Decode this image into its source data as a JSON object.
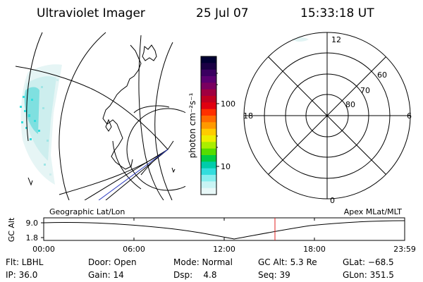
{
  "header": {
    "instrument": "Ultraviolet Imager",
    "date": "25 Jul 07",
    "time": "15:33:18 UT"
  },
  "colorbar": {
    "label": "photon cm⁻²s⁻¹",
    "ticks": [
      "100",
      "10"
    ],
    "colors": [
      "#000033",
      "#1a0044",
      "#3a0060",
      "#5a0070",
      "#7a0060",
      "#a00040",
      "#c00020",
      "#e00010",
      "#ff3000",
      "#ff6a00",
      "#ff9900",
      "#ffcc00",
      "#eeee00",
      "#aaee00",
      "#55dd00",
      "#00cc44",
      "#00ccaa",
      "#33dddd",
      "#88eeee",
      "#c8f4f4",
      "#e8f8f8"
    ]
  },
  "polar_plot": {
    "mlt_labels": [
      "12",
      "18",
      "6",
      "0"
    ],
    "lat_labels": [
      "60",
      "70",
      "80"
    ]
  },
  "map_caption": "Geographic Lat/Lon",
  "polar_caption": "Apex MLat/MLT",
  "altitude_plot": {
    "ylabel": "GC Alt",
    "yticks": [
      "9.0",
      "1.8"
    ],
    "xticks": [
      "00:00",
      "06:00",
      "12:00",
      "18:00",
      "23:59"
    ]
  },
  "status": {
    "flt": "Flt: LBHL",
    "ip": "IP: 36.0",
    "door": "Door: Open",
    "gain": "Gain: 14",
    "mode": "Mode: Normal",
    "dsp": "Dsp:    4.8",
    "gcalt": "GC Alt: 5.3 Re",
    "seq": "Seq: 39",
    "glat": "GLat: −68.5",
    "glon": "GLon: 351.5"
  }
}
